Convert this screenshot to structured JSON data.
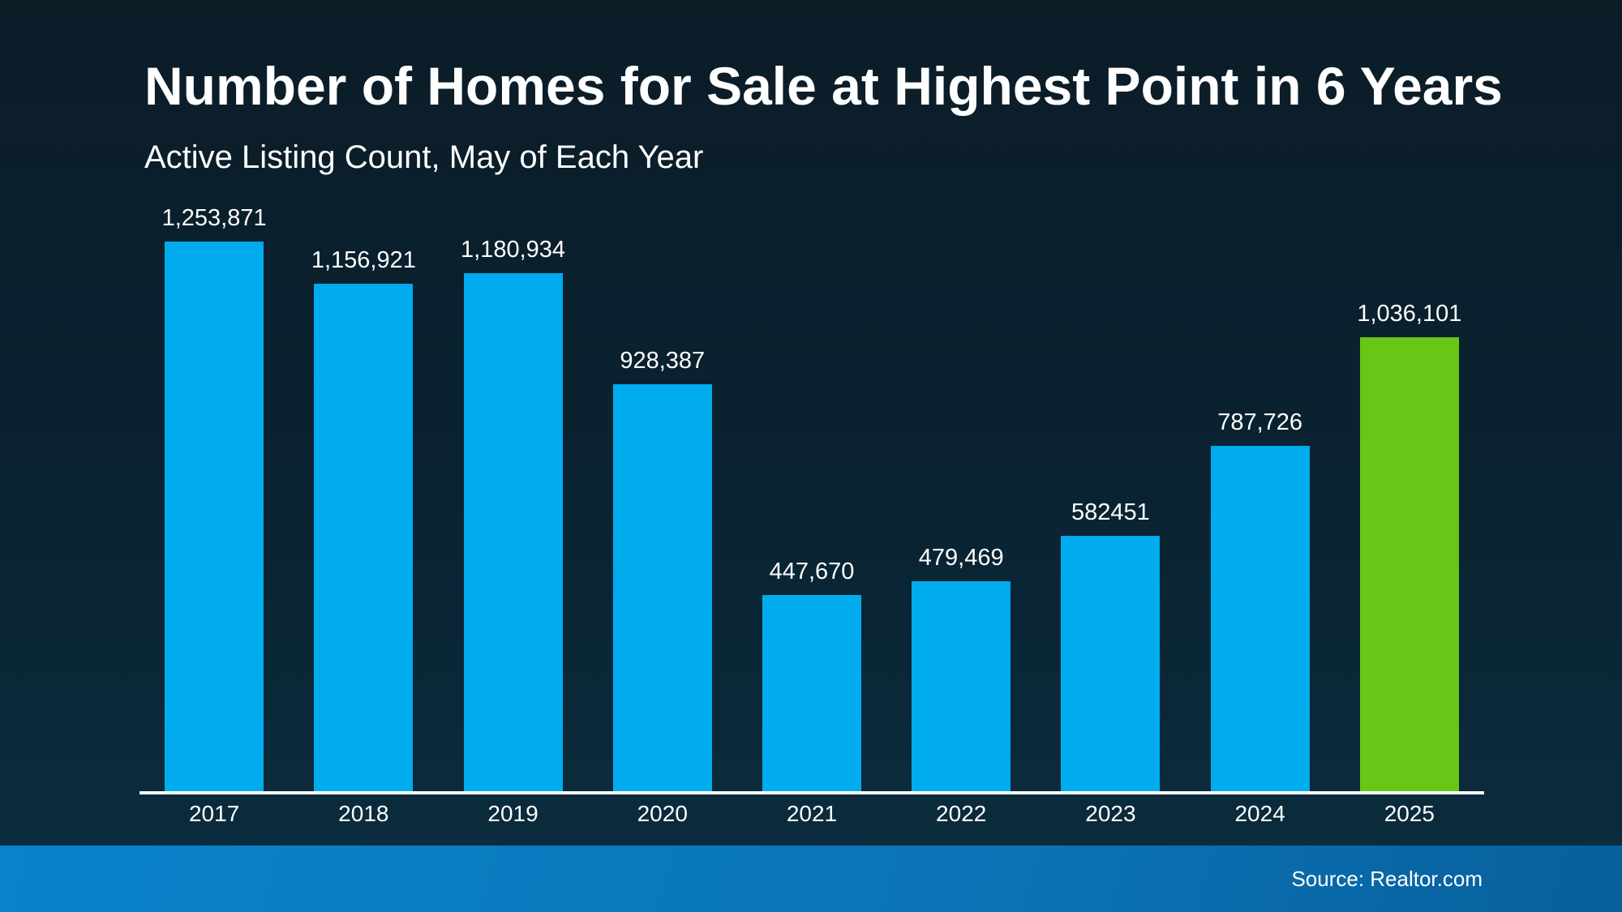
{
  "header": {
    "title": "Number of Homes for Sale at Highest Point in 6 Years",
    "subtitle": "Active Listing Count, May of Each Year"
  },
  "footer": {
    "source": "Source: Realtor.com"
  },
  "colors": {
    "background_top": "#0b1c27",
    "background_bottom": "#0b2c3e",
    "bar": "#00acee",
    "highlight_bar": "#69c616",
    "axis": "#ffffff",
    "text": "#ffffff",
    "footer_left": "#0983cb",
    "footer_right": "#085f9c"
  },
  "chart_data": {
    "type": "bar",
    "title": "Number of Homes for Sale at Highest Point in 6 Years",
    "subtitle": "Active Listing Count, May of Each Year",
    "xlabel": "",
    "ylabel": "",
    "categories": [
      "2017",
      "2018",
      "2019",
      "2020",
      "2021",
      "2022",
      "2023",
      "2024",
      "2025"
    ],
    "values": [
      1253871,
      1156921,
      1180934,
      928387,
      447670,
      479469,
      582451,
      787726,
      1036101
    ],
    "value_labels": [
      "1,253,871",
      "1,156,921",
      "1,180,934",
      "928,387",
      "447,670",
      "479,469",
      "582451",
      "787,726",
      "1,036,101"
    ],
    "highlight_index": 8,
    "ylim": [
      0,
      1300000
    ],
    "grid": false,
    "legend": false,
    "value_labels_shown": true,
    "source": "Source: Realtor.com"
  }
}
